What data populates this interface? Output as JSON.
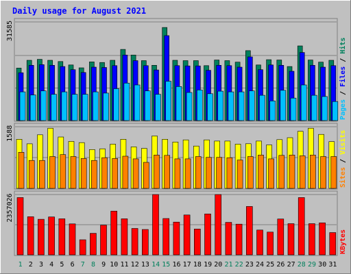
{
  "title": "Daily usage for August 2021",
  "colors": {
    "background": "#c0c0c0",
    "panel": "#c0c0c0",
    "title": "#0000ff",
    "hits": "#00805c",
    "files": "#0000ff",
    "pages": "#00c0ff",
    "visits": "#ffff00",
    "sites": "#ff8000",
    "kbytes": "#ff0000",
    "weekend_day": "#00805c",
    "weekday": "#0000ff"
  },
  "chart_data": [
    {
      "type": "bar",
      "panel": "hits-files-pages",
      "categories": [
        "1",
        "2",
        "3",
        "4",
        "5",
        "6",
        "7",
        "8",
        "9",
        "10",
        "11",
        "12",
        "13",
        "14",
        "15",
        "16",
        "17",
        "18",
        "19",
        "20",
        "21",
        "22",
        "23",
        "24",
        "25",
        "26",
        "27",
        "28",
        "29",
        "30",
        "31"
      ],
      "weekend_days": [
        "1",
        "7",
        "8",
        "14",
        "15",
        "21",
        "22",
        "28",
        "29"
      ],
      "ymax_label": "31585",
      "ylim": [
        0,
        31585
      ],
      "series": [
        {
          "name": "Hits",
          "values": [
            16800,
            19300,
            19600,
            19300,
            18900,
            17800,
            16900,
            18800,
            18600,
            19300,
            22800,
            21000,
            19200,
            17700,
            29800,
            19300,
            19200,
            19200,
            17600,
            19400,
            19200,
            18700,
            22400,
            17800,
            19500,
            19400,
            17300,
            23900,
            19400,
            18700,
            19300
          ]
        },
        {
          "name": "Files",
          "values": [
            15300,
            17700,
            17900,
            17700,
            17300,
            16300,
            15400,
            17100,
            17000,
            17600,
            21000,
            19200,
            17600,
            16200,
            27200,
            17600,
            17500,
            17500,
            16100,
            17700,
            17600,
            17100,
            20400,
            16300,
            17800,
            17700,
            15800,
            21800,
            17700,
            17100,
            17600
          ]
        },
        {
          "name": "Pages",
          "values": [
            9200,
            8200,
            9500,
            8400,
            9200,
            8400,
            8400,
            9200,
            8800,
            10200,
            12000,
            11400,
            9500,
            8400,
            12600,
            10900,
            9000,
            9800,
            8600,
            9400,
            9200,
            9200,
            9500,
            8100,
            6300,
            9700,
            7200,
            11400,
            8100,
            7700,
            6100
          ]
        }
      ],
      "legend": [
        "Pages",
        "Files",
        "Hits"
      ],
      "legend_position": "right"
    },
    {
      "type": "bar",
      "panel": "visits-sites",
      "categories": [
        "1",
        "2",
        "3",
        "4",
        "5",
        "6",
        "7",
        "8",
        "9",
        "10",
        "11",
        "12",
        "13",
        "14",
        "15",
        "16",
        "17",
        "18",
        "19",
        "20",
        "21",
        "22",
        "23",
        "24",
        "25",
        "26",
        "27",
        "28",
        "29",
        "30",
        "31"
      ],
      "ymax_label": "1588",
      "ylim": [
        0,
        1588
      ],
      "series": [
        {
          "name": "Visits",
          "values": [
            1265,
            1149,
            1380,
            1550,
            1323,
            1211,
            1178,
            1000,
            1020,
            1140,
            1265,
            1070,
            1030,
            1350,
            1265,
            1195,
            1250,
            1090,
            1250,
            1220,
            1220,
            1140,
            1150,
            1220,
            1120,
            1256,
            1305,
            1470,
            1550,
            1390,
            1205
          ]
        },
        {
          "name": "Sites",
          "values": [
            930,
            720,
            720,
            820,
            870,
            820,
            770,
            720,
            790,
            770,
            830,
            760,
            670,
            860,
            850,
            760,
            760,
            820,
            800,
            800,
            790,
            730,
            820,
            860,
            760,
            850,
            860,
            840,
            860,
            820,
            820
          ]
        }
      ],
      "legend": [
        "Sites",
        "Visits"
      ],
      "legend_position": "right"
    },
    {
      "type": "bar",
      "panel": "kbytes",
      "categories": [
        "1",
        "2",
        "3",
        "4",
        "5",
        "6",
        "7",
        "8",
        "9",
        "10",
        "11",
        "12",
        "13",
        "14",
        "15",
        "16",
        "17",
        "18",
        "19",
        "20",
        "21",
        "22",
        "23",
        "24",
        "25",
        "26",
        "27",
        "28",
        "29",
        "30",
        "31"
      ],
      "ymax_label": "2357026",
      "ylim": [
        0,
        2357026
      ],
      "series": [
        {
          "name": "KBytes",
          "values": [
            2240000,
            1490000,
            1390000,
            1480000,
            1410000,
            1210000,
            590000,
            840000,
            1160000,
            1710000,
            1410000,
            1030000,
            990000,
            2357026,
            1420000,
            1280000,
            1560000,
            1010000,
            1600000,
            2357026,
            1270000,
            1200000,
            1890000,
            970000,
            890000,
            1400000,
            1220000,
            2240000,
            1220000,
            1250000,
            870000
          ]
        }
      ],
      "legend": [
        "KBytes"
      ],
      "legend_position": "right"
    }
  ]
}
